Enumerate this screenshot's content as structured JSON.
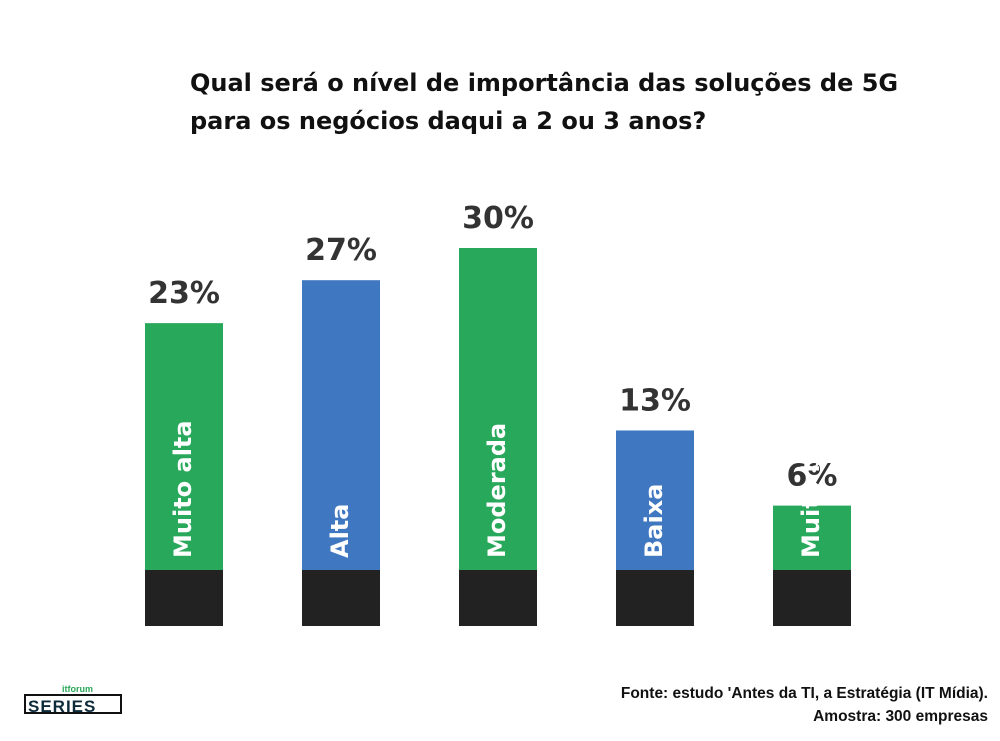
{
  "title_lines": [
    "Qual será o nível de importância das soluções de 5G",
    "para os negócios daqui a 2 ou 3 anos?"
  ],
  "source_lines": [
    "Fonte: estudo 'Antes da TI, a Estratégia (IT Mídia).",
    "Amostra: 300 empresas"
  ],
  "logo": {
    "top": "itforum",
    "word": "SERIES"
  },
  "colors": {
    "green": "#27a85a",
    "blue": "#3f78c0",
    "base": "#222222",
    "text": "#333333"
  },
  "chart_data": {
    "type": "bar",
    "categories": [
      "Muito alta",
      "Alta",
      "Moderada",
      "Baixa",
      "Muito baixa"
    ],
    "values": [
      23,
      27,
      30,
      13,
      6
    ],
    "value_labels": [
      "23%",
      "27%",
      "30%",
      "13%",
      "6%"
    ],
    "bar_colors": [
      "#27a85a",
      "#3f78c0",
      "#27a85a",
      "#3f78c0",
      "#27a85a"
    ],
    "title": "Qual será o nível de importância das soluções de 5G para os negócios daqui a 2 ou 3 anos?",
    "xlabel": "",
    "ylabel": "",
    "ylim": [
      0,
      30
    ],
    "grid": false
  }
}
